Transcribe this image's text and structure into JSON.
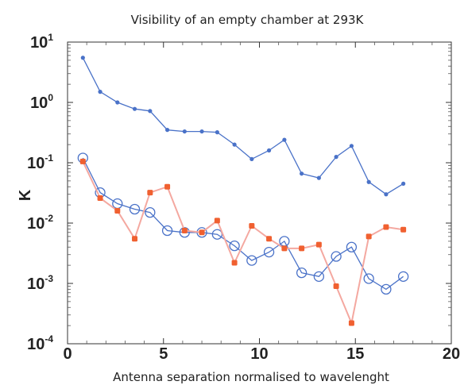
{
  "chart_data": {
    "type": "line",
    "title": "Visibility of an empty chamber at 293K",
    "xlabel": "Antenna separation normalised to wavelenght",
    "ylabel": "K",
    "xlim": [
      0,
      20
    ],
    "ylim": [
      0.0001,
      10
    ],
    "yscale": "log",
    "grid": false,
    "x_ticks": [
      0,
      5,
      10,
      15,
      20
    ],
    "y_ticks": [
      {
        "value": 10,
        "base": "10",
        "exp": "1"
      },
      {
        "value": 1,
        "base": "10",
        "exp": "0"
      },
      {
        "value": 0.1,
        "base": "10",
        "exp": "-1"
      },
      {
        "value": 0.01,
        "base": "10",
        "exp": "-2"
      },
      {
        "value": 0.001,
        "base": "10",
        "exp": "-3"
      },
      {
        "value": 0.0001,
        "base": "10",
        "exp": "-4"
      }
    ],
    "x": [
      0.8,
      1.7,
      2.6,
      3.5,
      4.3,
      5.2,
      6.1,
      7.0,
      7.8,
      8.7,
      9.6,
      10.5,
      11.3,
      12.2,
      13.1,
      14.0,
      14.8,
      15.7,
      16.6,
      17.5
    ],
    "series": [
      {
        "color": "#4a72c8",
        "marker": "dot",
        "values": [
          5.5,
          1.5,
          1.0,
          0.78,
          0.72,
          0.35,
          0.33,
          0.33,
          0.32,
          0.2,
          0.115,
          0.16,
          0.24,
          0.066,
          0.056,
          0.125,
          0.19,
          0.048,
          0.03,
          0.045
        ]
      },
      {
        "color": "#4a72c8",
        "marker": "circle",
        "values": [
          0.12,
          0.032,
          0.021,
          0.017,
          0.015,
          0.0075,
          0.007,
          0.007,
          0.0065,
          0.0042,
          0.0024,
          0.0033,
          0.005,
          0.0015,
          0.0013,
          0.0028,
          0.004,
          0.0012,
          0.0008,
          0.0013
        ]
      },
      {
        "color": "#f06030",
        "line_color": "#f4a8a0",
        "marker": "square",
        "values": [
          0.105,
          0.026,
          0.016,
          0.0055,
          0.032,
          0.04,
          0.0075,
          0.007,
          0.011,
          0.0022,
          0.009,
          0.0055,
          0.0038,
          0.0038,
          0.0044,
          0.0009,
          0.00022,
          0.006,
          0.0086,
          0.0078
        ]
      }
    ]
  }
}
